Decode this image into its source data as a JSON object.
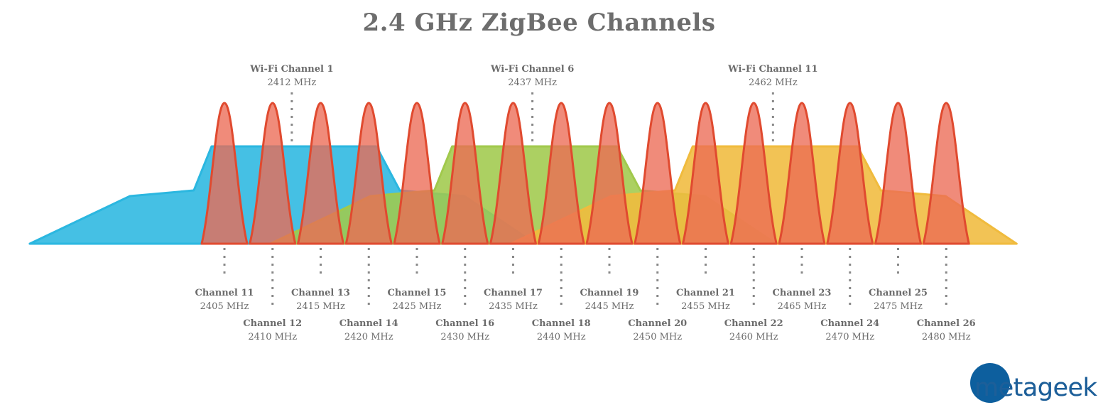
{
  "title": "2.4 GHz ZigBee Channels",
  "colors": {
    "wifi_1": "#2bb7e0",
    "wifi_6": "#a1c94c",
    "wifi_11": "#f0bb3d",
    "zigbee_fill": "#ec6a55",
    "zigbee_stroke": "#e04a2f",
    "text": "#6b6b6b",
    "dots": "#888888",
    "logo_blue": "#0d5f9e",
    "logo_text": "#1d5f99"
  },
  "wifi_channels": [
    {
      "name": "Wi-Fi Channel 1",
      "freq_label": "2412 MHz",
      "freq": 2412
    },
    {
      "name": "Wi-Fi Channel 6",
      "freq_label": "2437 MHz",
      "freq": 2437
    },
    {
      "name": "Wi-Fi Channel 11",
      "freq_label": "2462 MHz",
      "freq": 2462
    }
  ],
  "zigbee_channels": [
    {
      "name": "Channel 11",
      "freq_label": "2405 MHz",
      "freq": 2405
    },
    {
      "name": "Channel 12",
      "freq_label": "2410 MHz",
      "freq": 2410
    },
    {
      "name": "Channel 13",
      "freq_label": "2415 MHz",
      "freq": 2415
    },
    {
      "name": "Channel 14",
      "freq_label": "2420 MHz",
      "freq": 2420
    },
    {
      "name": "Channel 15",
      "freq_label": "2425 MHz",
      "freq": 2425
    },
    {
      "name": "Channel 16",
      "freq_label": "2430 MHz",
      "freq": 2430
    },
    {
      "name": "Channel 17",
      "freq_label": "2435 MHz",
      "freq": 2435
    },
    {
      "name": "Channel 18",
      "freq_label": "2440 MHz",
      "freq": 2440
    },
    {
      "name": "Channel 19",
      "freq_label": "2445 MHz",
      "freq": 2445
    },
    {
      "name": "Channel 20",
      "freq_label": "2450 MHz",
      "freq": 2450
    },
    {
      "name": "Channel 21",
      "freq_label": "2455 MHz",
      "freq": 2455
    },
    {
      "name": "Channel 22",
      "freq_label": "2460 MHz",
      "freq": 2460
    },
    {
      "name": "Channel 23",
      "freq_label": "2465 MHz",
      "freq": 2465
    },
    {
      "name": "Channel 24",
      "freq_label": "2470 MHz",
      "freq": 2470
    },
    {
      "name": "Channel 25",
      "freq_label": "2475 MHz",
      "freq": 2475
    },
    {
      "name": "Channel 26",
      "freq_label": "2480 MHz",
      "freq": 2480
    }
  ],
  "logo": {
    "text": "metageek"
  }
}
